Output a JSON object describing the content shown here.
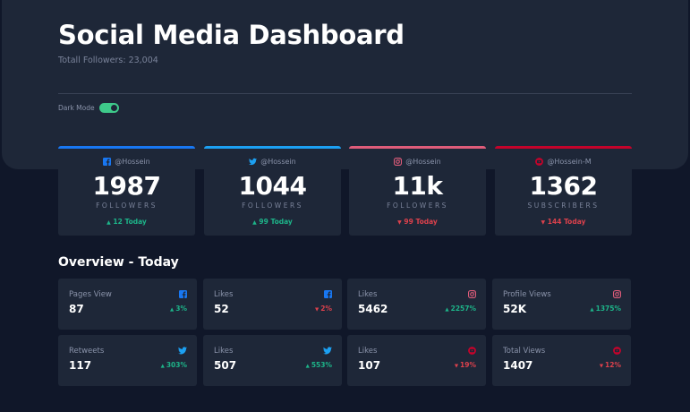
{
  "header": {
    "title": "Social Media Dashboard",
    "total_followers": "Totall Followers: 23,004",
    "dark_mode_label": "Dark Mode",
    "dark_mode_on": true
  },
  "colors": {
    "facebook": "#1877f2",
    "twitter": "#1ca0f2",
    "instagram": "#df5c7a",
    "youtube": "#c4032b",
    "up": "#1db489",
    "down": "#dc414c"
  },
  "cards": [
    {
      "platform": "facebook",
      "icon": "facebook-icon",
      "handle": "@Hossein",
      "count": "1987",
      "unit": "FOLLOWERS",
      "change": "12 Today",
      "trend": "up"
    },
    {
      "platform": "twitter",
      "icon": "twitter-icon",
      "handle": "@Hossein",
      "count": "1044",
      "unit": "FOLLOWERS",
      "change": "99 Today",
      "trend": "up"
    },
    {
      "platform": "instagram",
      "icon": "instagram-icon",
      "handle": "@Hossein",
      "count": "11k",
      "unit": "FOLLOWERS",
      "change": "99 Today",
      "trend": "down"
    },
    {
      "platform": "youtube",
      "icon": "youtube-icon",
      "handle": "@Hossein-M",
      "count": "1362",
      "unit": "SUBSCRIBERS",
      "change": "144 Today",
      "trend": "down"
    }
  ],
  "overview": {
    "title": "Overview - Today",
    "items": [
      {
        "label": "Pages View",
        "value": "87",
        "change": "3%",
        "trend": "up",
        "platform": "facebook",
        "icon": "facebook-icon"
      },
      {
        "label": "Likes",
        "value": "52",
        "change": "2%",
        "trend": "down",
        "platform": "facebook",
        "icon": "facebook-icon"
      },
      {
        "label": "Likes",
        "value": "5462",
        "change": "2257%",
        "trend": "up",
        "platform": "instagram",
        "icon": "instagram-icon"
      },
      {
        "label": "Profile Views",
        "value": "52K",
        "change": "1375%",
        "trend": "up",
        "platform": "instagram",
        "icon": "instagram-icon"
      },
      {
        "label": "Retweets",
        "value": "117",
        "change": "303%",
        "trend": "up",
        "platform": "twitter",
        "icon": "twitter-icon"
      },
      {
        "label": "Likes",
        "value": "507",
        "change": "553%",
        "trend": "up",
        "platform": "twitter",
        "icon": "twitter-icon"
      },
      {
        "label": "Likes",
        "value": "107",
        "change": "19%",
        "trend": "down",
        "platform": "youtube",
        "icon": "youtube-icon"
      },
      {
        "label": "Total Views",
        "value": "1407",
        "change": "12%",
        "trend": "down",
        "platform": "youtube",
        "icon": "youtube-icon"
      }
    ]
  }
}
